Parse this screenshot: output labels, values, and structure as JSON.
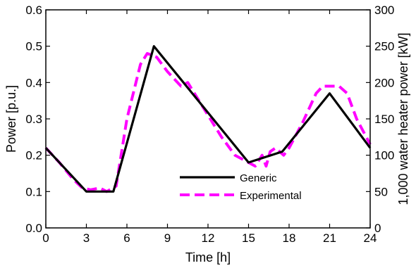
{
  "chart_data": {
    "type": "line",
    "title": "",
    "xlabel": "Time [h]",
    "ylabel": "Power [p.u.]",
    "y2label": "1,000 water heater power [kW]",
    "xlim": [
      0,
      24
    ],
    "ylim": [
      0,
      0.6
    ],
    "y2lim": [
      0,
      300
    ],
    "xticks": [
      "0",
      "3",
      "6",
      "9",
      "12",
      "15",
      "18",
      "21",
      "24"
    ],
    "yticks": [
      "0.0",
      "0.1",
      "0.2",
      "0.3",
      "0.4",
      "0.5",
      "0.6"
    ],
    "y2ticks": [
      "0",
      "50",
      "100",
      "150",
      "200",
      "250",
      "300"
    ],
    "grid": false,
    "legend_position": "bottom-center",
    "series": [
      {
        "name": "Generic",
        "color": "#000000",
        "style": "solid",
        "x": [
          0,
          3,
          5,
          8,
          15,
          17.5,
          21,
          24
        ],
        "y": [
          0.22,
          0.1,
          0.1,
          0.5,
          0.18,
          0.21,
          0.37,
          0.22
        ]
      },
      {
        "name": "Experimental",
        "color": "#ff00ff",
        "style": "dashed",
        "x": [
          0,
          1,
          2,
          2.7,
          3.3,
          4,
          4.5,
          5.2,
          6,
          7,
          7.5,
          8.2,
          9,
          9.5,
          10,
          10.5,
          11,
          12,
          13,
          14,
          15,
          15.5,
          16,
          16.3,
          16.6,
          17,
          17.6,
          18,
          19,
          20,
          20.5,
          21,
          21.7,
          22.3,
          23,
          24
        ],
        "y": [
          0.22,
          0.18,
          0.135,
          0.11,
          0.105,
          0.11,
          0.1,
          0.115,
          0.3,
          0.45,
          0.48,
          0.47,
          0.43,
          0.41,
          0.39,
          0.4,
          0.37,
          0.31,
          0.25,
          0.2,
          0.18,
          0.17,
          0.2,
          0.17,
          0.21,
          0.22,
          0.2,
          0.22,
          0.29,
          0.37,
          0.39,
          0.39,
          0.39,
          0.37,
          0.3,
          0.23
        ]
      }
    ]
  }
}
